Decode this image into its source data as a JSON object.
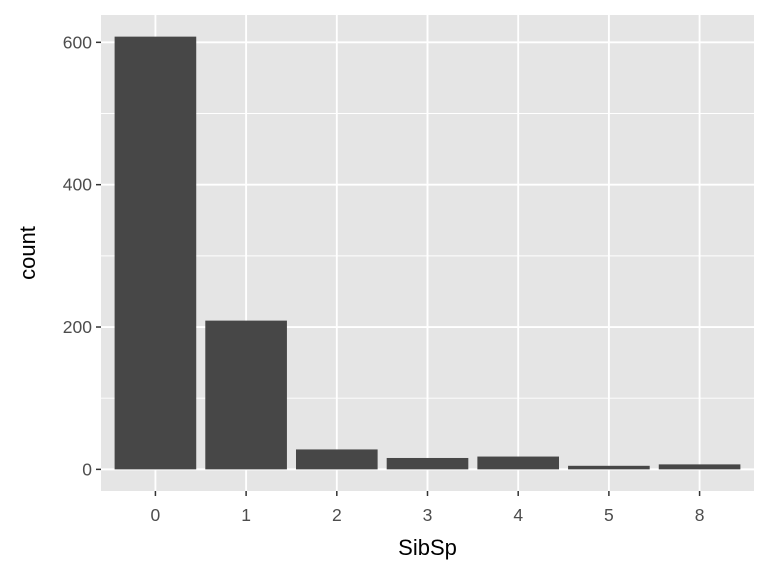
{
  "chart_data": {
    "type": "bar",
    "categories": [
      "0",
      "1",
      "2",
      "3",
      "4",
      "5",
      "8"
    ],
    "values": [
      608,
      209,
      28,
      16,
      18,
      5,
      7
    ],
    "xlabel": "SibSp",
    "ylabel": "count",
    "ylim": [
      -30.4,
      638.4
    ],
    "yticks": [
      0,
      200,
      400,
      600
    ],
    "yticks_minor": [
      100,
      300,
      500
    ],
    "grid": true,
    "legend": "none",
    "colors": {
      "bar": "#474747",
      "panel": "#e5e5e5",
      "grid": "#ffffff"
    }
  }
}
